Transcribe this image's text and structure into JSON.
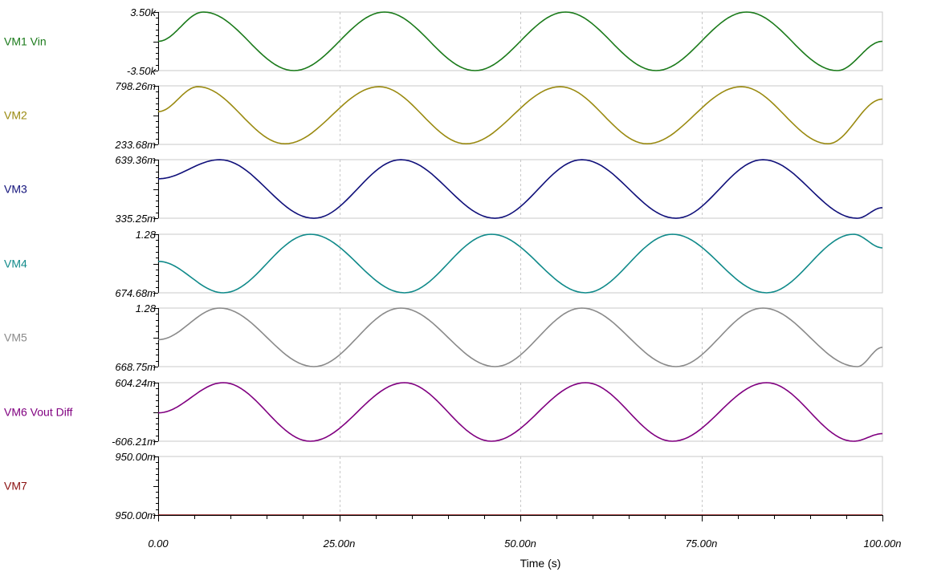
{
  "chart_data": {
    "type": "line",
    "x_label": "Time (s)",
    "x_range": [
      0,
      100
    ],
    "x_unit": "ns",
    "x_ticks": [
      {
        "value": 0,
        "label": "0.00"
      },
      {
        "value": 25,
        "label": "25.00n"
      },
      {
        "value": 50,
        "label": "50.00n"
      },
      {
        "value": 75,
        "label": "75.00n"
      },
      {
        "value": 100,
        "label": "100.00n"
      }
    ],
    "grid": "vertical dashed at major ticks",
    "period_ns": 25,
    "traces": [
      {
        "name": "VM1 Vin",
        "color": "#1a7a1a",
        "ymax_label": "3.50k",
        "ymin_label": "-3.50k",
        "x": [
          0,
          6.25,
          18.75,
          31.25,
          43.75,
          56.25,
          68.75,
          81.25,
          93.75,
          100
        ],
        "y": [
          0,
          3500,
          -3500,
          3500,
          -3500,
          3500,
          -3500,
          3500,
          -3500,
          0
        ]
      },
      {
        "name": "VM2",
        "color": "#9a8a10",
        "ymax_label": "798.26m",
        "ymin_label": "233.68m",
        "x": [
          0,
          5.5,
          17.5,
          30.5,
          42.5,
          55.5,
          67.5,
          80.5,
          92.5,
          100
        ],
        "y": [
          0.55,
          0.79,
          0.24,
          0.79,
          0.24,
          0.79,
          0.24,
          0.79,
          0.24,
          0.67
        ]
      },
      {
        "name": "VM3",
        "color": "#10107a",
        "ymax_label": "639.36m",
        "ymin_label": "335.25m",
        "x": [
          0,
          8.5,
          21.5,
          33.5,
          46.5,
          58.5,
          71.5,
          83.5,
          96.5,
          100
        ],
        "y": [
          0.54,
          0.639,
          0.335,
          0.639,
          0.335,
          0.639,
          0.335,
          0.639,
          0.335,
          0.39
        ]
      },
      {
        "name": "VM4",
        "color": "#108a8a",
        "ymax_label": "1.28",
        "ymin_label": "674.68m",
        "x": [
          0,
          9,
          21,
          34,
          46,
          59,
          71,
          84,
          96,
          100
        ],
        "y": [
          1.0,
          0.675,
          1.28,
          0.675,
          1.28,
          0.675,
          1.28,
          0.675,
          1.28,
          1.14
        ]
      },
      {
        "name": "VM5",
        "color": "#8a8a8a",
        "ymax_label": "1.28",
        "ymin_label": "668.75m",
        "x": [
          0,
          8.5,
          21.5,
          33.5,
          46.5,
          58.5,
          71.5,
          83.5,
          96.5,
          100
        ],
        "y": [
          0.95,
          1.28,
          0.669,
          1.28,
          0.669,
          1.28,
          0.669,
          1.28,
          0.669,
          0.87
        ]
      },
      {
        "name": "VM6 Vout Diff",
        "color": "#800080",
        "ymax_label": "604.24m",
        "ymin_label": "-606.21m",
        "x": [
          0,
          9,
          21,
          34,
          46,
          59,
          71,
          84,
          96,
          100
        ],
        "y": [
          -0.02,
          0.604,
          -0.606,
          0.604,
          -0.606,
          0.604,
          -0.606,
          0.604,
          -0.606,
          -0.45
        ]
      },
      {
        "name": "VM7",
        "color": "#8a1010",
        "ymax_label": "950.00m",
        "ymin_label": "950.00m",
        "x": [
          0,
          100
        ],
        "y": [
          0.95,
          0.95
        ]
      }
    ]
  }
}
